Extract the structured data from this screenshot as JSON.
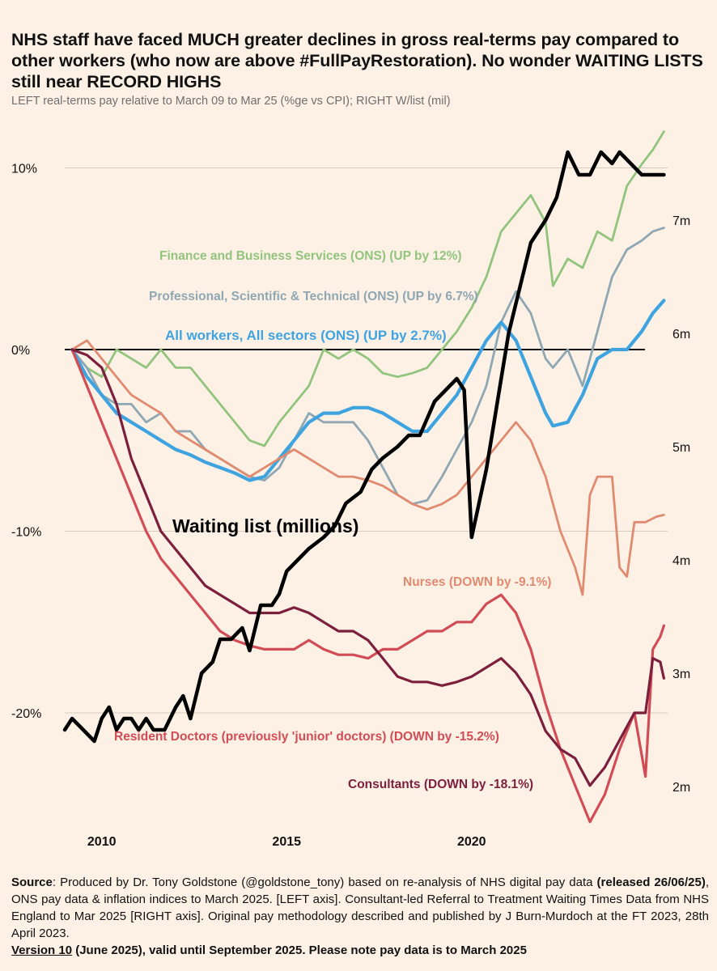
{
  "title": "NHS staff have faced MUCH greater declines in gross real-terms pay compared to other workers (who now are above #FullPayRestoration). No wonder WAITING LISTS still near RECORD HIGHS",
  "subtitle": "LEFT real-terms pay relative to March 09 to Mar 25 (%ge vs CPI); RIGHT W/list (mil)",
  "source": {
    "label": "Source",
    "text1": ": Produced by Dr. Tony Goldstone (@goldstone_tony) based on re-analysis of NHS digital pay data ",
    "bold1": "(released 26/06/25)",
    "text2": ", ONS pay data & inflation indices to March 2025. [LEFT axis]. Consultant-led Referral to Treatment Waiting Times Data from NHS England to Mar 2025 [RIGHT axis]. Original pay methodology described and published by J Burn-Murdoch at the FT 2023, 28th April 2023."
  },
  "version": {
    "label": "Version 10",
    "text": " (June 2025), valid until September 2025. Please note pay data is to March 2025"
  },
  "chart_data": {
    "type": "line",
    "title": "NHS staff have faced MUCH greater declines in gross real-terms pay compared to other workers",
    "x_ticks": [
      "2010",
      "2015",
      "2020"
    ],
    "x_tick_values": [
      2010,
      2015,
      2020
    ],
    "xlim": [
      2009.0,
      2025.3
    ],
    "left_axis": {
      "label": "real-terms pay vs March 09 (%)",
      "ticks": [
        "10%",
        "0%",
        "-10%",
        "-20%"
      ],
      "tick_values": [
        10,
        0,
        -10,
        -20
      ],
      "ylim": [
        -26.5,
        12
      ]
    },
    "right_axis": {
      "label": "Waiting list (mil)",
      "ticks": [
        "7m",
        "6m",
        "5m",
        "4m",
        "3m",
        "2m"
      ],
      "tick_values": [
        7,
        6,
        5,
        4,
        3,
        2
      ],
      "ylim": [
        1.6,
        7.7
      ]
    },
    "grid": "horizontal",
    "series": [
      {
        "name": "Finance and Business Services (ONS) (UP by 12%)",
        "label": "Finance and Business Services (ONS) (UP by 12%)",
        "color": "#92c47d",
        "axis": "left",
        "x": [
          2009.2,
          2009.6,
          2010.0,
          2010.4,
          2010.8,
          2011.2,
          2011.6,
          2012.0,
          2012.4,
          2012.8,
          2013.2,
          2013.6,
          2014.0,
          2014.4,
          2014.8,
          2015.2,
          2015.6,
          2016.0,
          2016.4,
          2016.8,
          2017.2,
          2017.6,
          2018.0,
          2018.4,
          2018.8,
          2019.2,
          2019.6,
          2020.0,
          2020.4,
          2020.8,
          2021.2,
          2021.6,
          2022.0,
          2022.2,
          2022.6,
          2023.0,
          2023.4,
          2023.8,
          2024.2,
          2024.6,
          2024.9,
          2025.2
        ],
        "values": [
          0,
          -1,
          -1.5,
          0,
          -0.5,
          -1,
          0,
          -1,
          -1,
          -2,
          -3,
          -4,
          -5,
          -5.3,
          -4,
          -3,
          -2,
          0,
          -0.5,
          0,
          -0.5,
          -1.3,
          -1.5,
          -1.3,
          -1,
          0,
          1,
          2.3,
          4,
          6.5,
          7.5,
          8.5,
          7,
          3.5,
          5,
          4.5,
          6.5,
          6,
          9,
          10.2,
          11,
          12
        ]
      },
      {
        "name": "Professional, Scientific & Technical (ONS) (UP by 6.7%)",
        "label": "Professional, Scientific & Technical (ONS) (UP by 6.7%)",
        "color": "#8fa7b3",
        "axis": "left",
        "x": [
          2009.2,
          2009.6,
          2010.0,
          2010.4,
          2010.8,
          2011.2,
          2011.6,
          2012.0,
          2012.4,
          2012.8,
          2013.2,
          2013.6,
          2014.0,
          2014.4,
          2014.8,
          2015.2,
          2015.6,
          2016.0,
          2016.4,
          2016.8,
          2017.2,
          2017.6,
          2018.0,
          2018.4,
          2018.8,
          2019.2,
          2019.6,
          2020.0,
          2020.4,
          2020.8,
          2021.2,
          2021.6,
          2022.0,
          2022.2,
          2022.6,
          2023.0,
          2023.4,
          2023.8,
          2024.2,
          2024.6,
          2024.9,
          2025.2
        ],
        "values": [
          0,
          -1,
          -2.5,
          -3,
          -3,
          -4,
          -3.5,
          -4.5,
          -4.5,
          -5.5,
          -6,
          -6.5,
          -7,
          -7.2,
          -6.5,
          -5,
          -3.5,
          -4,
          -4,
          -4,
          -5,
          -6.5,
          -8,
          -8.5,
          -8.3,
          -7,
          -5.5,
          -4,
          -2,
          1.5,
          3.2,
          2,
          -0.5,
          -1,
          0,
          -2,
          1,
          4,
          5.5,
          6,
          6.5,
          6.7
        ]
      },
      {
        "name": "All workers, All sectors (ONS) (UP by 2.7%)",
        "label": "All workers, All sectors (ONS) (UP by 2.7%)",
        "color": "#3fa3e0",
        "axis": "left",
        "x": [
          2009.2,
          2009.6,
          2010.0,
          2010.4,
          2010.8,
          2011.2,
          2011.6,
          2012.0,
          2012.4,
          2012.8,
          2013.2,
          2013.6,
          2014.0,
          2014.4,
          2014.8,
          2015.2,
          2015.6,
          2016.0,
          2016.4,
          2016.8,
          2017.2,
          2017.6,
          2018.0,
          2018.4,
          2018.8,
          2019.2,
          2019.6,
          2020.0,
          2020.4,
          2020.8,
          2021.2,
          2021.6,
          2022.0,
          2022.2,
          2022.6,
          2023.0,
          2023.4,
          2023.8,
          2024.2,
          2024.6,
          2024.9,
          2025.2
        ],
        "values": [
          0,
          -1.5,
          -2.5,
          -3.5,
          -4,
          -4.5,
          -5,
          -5.5,
          -5.8,
          -6.2,
          -6.5,
          -6.8,
          -7.2,
          -7,
          -6,
          -5,
          -4,
          -3.5,
          -3.5,
          -3.2,
          -3.2,
          -3.5,
          -4,
          -4.5,
          -4.5,
          -3.5,
          -2.5,
          -1,
          0.5,
          1.5,
          0.5,
          -1.5,
          -3.5,
          -4.2,
          -4,
          -2.5,
          -0.5,
          0,
          0,
          1,
          2,
          2.7
        ]
      },
      {
        "name": "Nurses (DOWN by -9.1%)",
        "label": "Nurses (DOWN by -9.1%)",
        "color": "#e08a70",
        "axis": "left",
        "x": [
          2009.2,
          2009.6,
          2010.0,
          2010.4,
          2010.8,
          2011.2,
          2011.6,
          2012.0,
          2012.4,
          2012.8,
          2013.2,
          2013.6,
          2014.0,
          2014.4,
          2014.8,
          2015.2,
          2015.6,
          2016.0,
          2016.4,
          2016.8,
          2017.2,
          2017.6,
          2018.0,
          2018.4,
          2018.8,
          2019.2,
          2019.6,
          2020.0,
          2020.4,
          2020.8,
          2021.2,
          2021.6,
          2022.0,
          2022.4,
          2022.8,
          2023.0,
          2023.2,
          2023.4,
          2023.8,
          2024.0,
          2024.2,
          2024.4,
          2024.7,
          2025.0,
          2025.2
        ],
        "values": [
          0,
          0.5,
          -0.5,
          -1.5,
          -2.5,
          -3,
          -3.5,
          -4.5,
          -5,
          -5.5,
          -6,
          -6.5,
          -7,
          -6.5,
          -6,
          -5.5,
          -6,
          -6.5,
          -7,
          -7,
          -7.2,
          -7.5,
          -8,
          -8.5,
          -8.8,
          -8.5,
          -8,
          -7,
          -6,
          -5,
          -4,
          -5,
          -7,
          -10,
          -12,
          -13.5,
          -8,
          -7,
          -7,
          -12,
          -12.5,
          -9.5,
          -9.5,
          -9.2,
          -9.1
        ]
      },
      {
        "name": "Resident Doctors (previously 'junior' doctors) (DOWN by -15.2%)",
        "label": "Resident Doctors (previously 'junior' doctors) (DOWN by -15.2%)",
        "color": "#d24c55",
        "axis": "left",
        "x": [
          2009.2,
          2009.6,
          2010.0,
          2010.4,
          2010.8,
          2011.2,
          2011.6,
          2012.0,
          2012.4,
          2012.8,
          2013.2,
          2013.6,
          2014.0,
          2014.4,
          2014.8,
          2015.2,
          2015.6,
          2016.0,
          2016.4,
          2016.8,
          2017.2,
          2017.6,
          2018.0,
          2018.4,
          2018.8,
          2019.2,
          2019.6,
          2020.0,
          2020.4,
          2020.8,
          2021.2,
          2021.6,
          2022.0,
          2022.4,
          2022.8,
          2023.2,
          2023.6,
          2024.0,
          2024.4,
          2024.7,
          2024.9,
          2025.1,
          2025.2
        ],
        "values": [
          0,
          -2,
          -4,
          -6,
          -8,
          -10,
          -11.5,
          -12.5,
          -13.5,
          -14.5,
          -15.5,
          -16,
          -16.3,
          -16.5,
          -16.5,
          -16.5,
          -16,
          -16.5,
          -16.8,
          -16.8,
          -17,
          -16.5,
          -16.5,
          -16,
          -15.5,
          -15.5,
          -15,
          -15,
          -14,
          -13.5,
          -14.5,
          -16.5,
          -19.5,
          -22,
          -24,
          -26,
          -24.5,
          -22,
          -20,
          -23.5,
          -16.5,
          -15.8,
          -15.2
        ]
      },
      {
        "name": "Consultants (DOWN by -18.1%)",
        "label": "Consultants (DOWN by -18.1%)",
        "color": "#7c1f3c",
        "axis": "left",
        "x": [
          2009.2,
          2009.6,
          2010.0,
          2010.4,
          2010.8,
          2011.2,
          2011.6,
          2012.0,
          2012.4,
          2012.8,
          2013.2,
          2013.6,
          2014.0,
          2014.4,
          2014.8,
          2015.2,
          2015.6,
          2016.0,
          2016.4,
          2016.8,
          2017.2,
          2017.6,
          2018.0,
          2018.4,
          2018.8,
          2019.2,
          2019.6,
          2020.0,
          2020.4,
          2020.8,
          2021.2,
          2021.6,
          2022.0,
          2022.4,
          2022.8,
          2023.2,
          2023.6,
          2024.0,
          2024.4,
          2024.7,
          2024.9,
          2025.1,
          2025.2
        ],
        "values": [
          0,
          -0.3,
          -1,
          -3,
          -6,
          -8,
          -10,
          -11,
          -12,
          -13,
          -13.5,
          -14,
          -14.5,
          -14.5,
          -14.5,
          -14.2,
          -14.5,
          -15,
          -15.5,
          -15.5,
          -16,
          -17,
          -18,
          -18.3,
          -18.3,
          -18.5,
          -18.3,
          -18,
          -17.5,
          -17,
          -17.8,
          -19,
          -21,
          -22,
          -22.5,
          -24,
          -23,
          -21.5,
          -20,
          -20,
          -17,
          -17.2,
          -18.1
        ]
      },
      {
        "name": "Waiting list (millions)",
        "label": "Waiting list (millions)",
        "color": "#000000",
        "axis": "right",
        "x": [
          2009.0,
          2009.2,
          2009.5,
          2009.8,
          2010.0,
          2010.2,
          2010.4,
          2010.6,
          2010.8,
          2011.0,
          2011.2,
          2011.4,
          2011.7,
          2012.0,
          2012.2,
          2012.4,
          2012.7,
          2013.0,
          2013.2,
          2013.5,
          2013.8,
          2014.0,
          2014.3,
          2014.6,
          2014.8,
          2015.0,
          2015.3,
          2015.6,
          2016.0,
          2016.3,
          2016.6,
          2017.0,
          2017.3,
          2017.6,
          2018.0,
          2018.3,
          2018.6,
          2019.0,
          2019.3,
          2019.6,
          2019.8,
          2020.0,
          2020.2,
          2020.4,
          2020.6,
          2020.8,
          2021.0,
          2021.3,
          2021.6,
          2022.0,
          2022.3,
          2022.6,
          2022.9,
          2023.2,
          2023.5,
          2023.8,
          2024.0,
          2024.3,
          2024.6,
          2024.9,
          2025.2
        ],
        "values": [
          2.5,
          2.6,
          2.5,
          2.4,
          2.6,
          2.7,
          2.5,
          2.6,
          2.6,
          2.5,
          2.6,
          2.5,
          2.5,
          2.7,
          2.8,
          2.6,
          3.0,
          3.1,
          3.3,
          3.3,
          3.4,
          3.2,
          3.6,
          3.6,
          3.7,
          3.9,
          4.0,
          4.1,
          4.2,
          4.3,
          4.5,
          4.6,
          4.8,
          4.9,
          5.0,
          5.1,
          5.1,
          5.4,
          5.5,
          5.6,
          5.5,
          4.2,
          4.5,
          4.8,
          5.2,
          5.6,
          6.0,
          6.4,
          6.8,
          7.0,
          7.2,
          7.6,
          7.4,
          7.4,
          7.6,
          7.5,
          7.6,
          7.5,
          7.4,
          7.4,
          7.4
        ]
      }
    ],
    "annotations": []
  }
}
